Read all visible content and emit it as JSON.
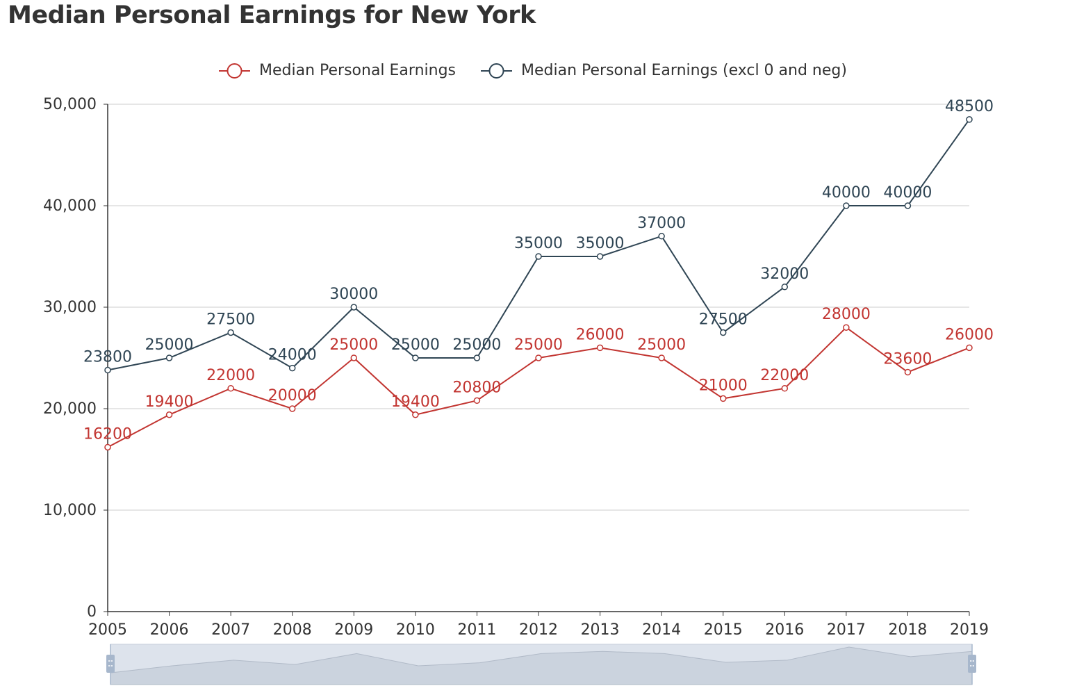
{
  "title": "Median Personal Earnings for New York",
  "colors": {
    "series1": "#c23531",
    "series2": "#2f4554",
    "grid": "#cccccc",
    "axis": "#333333",
    "slider_fill": "#dde3ec",
    "slider_handle": "#a7b7cc"
  },
  "chart_data": {
    "type": "line",
    "title": "Median Personal Earnings for New York",
    "x": [
      "2005",
      "2006",
      "2007",
      "2008",
      "2009",
      "2010",
      "2011",
      "2012",
      "2013",
      "2014",
      "2015",
      "2016",
      "2017",
      "2018",
      "2019"
    ],
    "series": [
      {
        "name": "Median Personal Earnings",
        "values": [
          16200,
          19400,
          22000,
          20000,
          25000,
          19400,
          20800,
          25000,
          26000,
          25000,
          21000,
          22000,
          28000,
          23600,
          26000
        ]
      },
      {
        "name": "Median Personal Earnings (excl 0 and neg)",
        "values": [
          23800,
          25000,
          27500,
          24000,
          30000,
          25000,
          25000,
          35000,
          35000,
          37000,
          27500,
          32000,
          40000,
          40000,
          48500
        ]
      }
    ],
    "ylim": [
      0,
      50000
    ],
    "yticks": [
      "0",
      "10,000",
      "20,000",
      "30,000",
      "40,000",
      "50,000"
    ],
    "ytick_values": [
      0,
      10000,
      20000,
      30000,
      40000,
      50000
    ],
    "grid": true,
    "legend_position": "top-center",
    "data_labels": true,
    "data_zoom_slider": true
  }
}
